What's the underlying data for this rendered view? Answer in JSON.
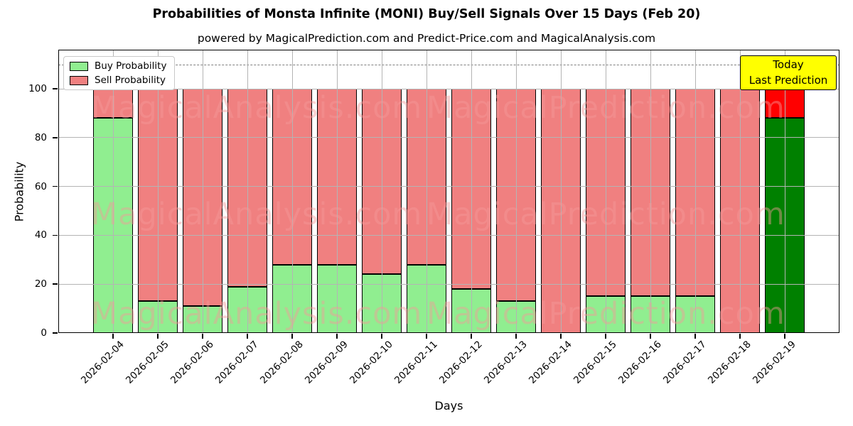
{
  "header": {
    "title": "Probabilities of Monsta Infinite (MONI) Buy/Sell Signals Over 15 Days (Feb 20)",
    "subtitle": "powered by MagicalPrediction.com and Predict-Price.com and MagicalAnalysis.com"
  },
  "legend": {
    "items": [
      {
        "label": "Buy Probability",
        "color": "#90EE90"
      },
      {
        "label": "Sell Probability",
        "color": "#F08080"
      }
    ]
  },
  "annotation": {
    "line1": "Today",
    "line2": "Last Prediction",
    "bg": "#FFFF00"
  },
  "watermarks": {
    "left_text": "MagicalAnalysis.com",
    "right_text": "MagicalPrediction.com"
  },
  "chart_data": {
    "type": "bar",
    "stacked": true,
    "title": "Probabilities of Monsta Infinite (MONI) Buy/Sell Signals Over 15 Days (Feb 20)",
    "xlabel": "Days",
    "ylabel": "Probability",
    "categories": [
      "2026-02-04",
      "2026-02-05",
      "2026-02-06",
      "2026-02-07",
      "2026-02-08",
      "2026-02-09",
      "2026-02-10",
      "2026-02-11",
      "2026-02-12",
      "2026-02-13",
      "2026-02-14",
      "2026-02-15",
      "2026-02-16",
      "2026-02-17",
      "2026-02-18",
      "2026-02-19"
    ],
    "series": [
      {
        "name": "Buy Probability",
        "color": "#90EE90",
        "values": [
          88,
          13,
          11,
          19,
          28,
          28,
          24,
          28,
          18,
          13,
          0,
          15,
          15,
          15,
          0,
          88
        ]
      },
      {
        "name": "Sell Probability",
        "color": "#F08080",
        "values": [
          12,
          87,
          89,
          81,
          72,
          72,
          76,
          72,
          82,
          87,
          100,
          85,
          85,
          85,
          100,
          12
        ]
      }
    ],
    "last_bar_colors": {
      "buy": "#008000",
      "sell": "#FF0000"
    },
    "yticks": [
      0,
      20,
      40,
      60,
      80,
      100
    ],
    "ylim": [
      0,
      116
    ],
    "dashed_line_y": 110,
    "grid": true,
    "legend_position": "upper-left",
    "bar_edge_color": "#000000"
  }
}
